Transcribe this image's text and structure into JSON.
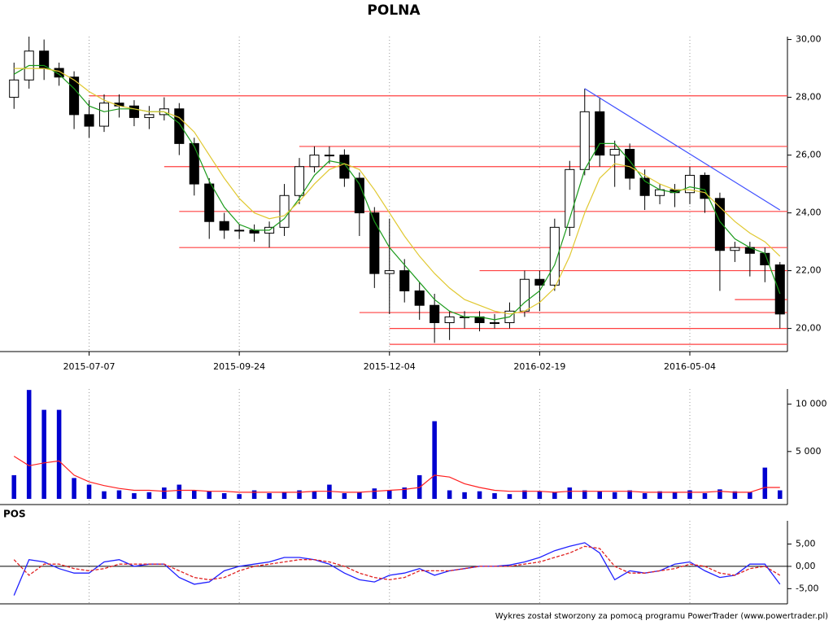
{
  "chart_data": [
    {
      "type": "candlestick",
      "title": "POLNA",
      "categories": [
        null,
        null,
        null,
        null,
        null,
        "2015-07-07",
        null,
        null,
        null,
        null,
        null,
        null,
        null,
        null,
        null,
        "2015-09-24",
        null,
        null,
        null,
        null,
        null,
        null,
        null,
        null,
        null,
        "2015-12-04",
        null,
        null,
        null,
        null,
        null,
        null,
        null,
        null,
        null,
        "2016-02-19",
        null,
        null,
        null,
        null,
        null,
        null,
        null,
        null,
        null,
        "2016-05-04",
        null,
        null,
        null,
        null,
        null,
        null
      ],
      "open": [
        28.0,
        28.6,
        29.6,
        29.0,
        28.7,
        27.4,
        27.0,
        27.8,
        27.7,
        27.3,
        27.4,
        27.6,
        26.4,
        25.0,
        23.7,
        23.4,
        23.4,
        23.3,
        23.5,
        24.6,
        25.6,
        26.0,
        26.0,
        25.2,
        24.0,
        21.9,
        22.0,
        21.3,
        20.8,
        20.2,
        20.4,
        20.4,
        20.2,
        20.2,
        20.6,
        21.7,
        21.5,
        23.5,
        25.5,
        27.5,
        26.0,
        26.2,
        25.2,
        24.6,
        24.8,
        24.7,
        25.3,
        24.5,
        22.7,
        22.8,
        22.6,
        22.2
      ],
      "high": [
        29.2,
        30.1,
        30.0,
        29.2,
        28.9,
        27.9,
        28.1,
        28.1,
        27.9,
        27.7,
        28.0,
        27.8,
        26.6,
        25.2,
        24.0,
        23.6,
        23.6,
        23.7,
        25.0,
        25.9,
        26.3,
        26.3,
        26.2,
        25.4,
        24.2,
        23.8,
        22.4,
        21.6,
        21.2,
        20.6,
        20.6,
        20.6,
        20.5,
        20.9,
        22.0,
        22.0,
        23.8,
        25.8,
        28.3,
        28.0,
        26.5,
        26.4,
        25.5,
        25.0,
        25.0,
        25.6,
        25.4,
        24.7,
        23.0,
        23.0,
        22.8,
        22.3
      ],
      "low": [
        27.6,
        28.3,
        28.6,
        28.4,
        26.9,
        26.6,
        26.8,
        27.3,
        27.0,
        26.9,
        27.2,
        26.0,
        24.6,
        23.1,
        23.1,
        23.1,
        23.0,
        22.8,
        23.2,
        24.3,
        25.4,
        25.7,
        24.9,
        23.2,
        21.4,
        20.5,
        20.9,
        20.3,
        19.5,
        19.6,
        20.0,
        19.9,
        20.0,
        20.0,
        20.4,
        20.6,
        21.3,
        23.2,
        25.3,
        25.6,
        24.9,
        24.8,
        24.1,
        24.3,
        24.2,
        24.3,
        24.0,
        21.3,
        22.3,
        21.8,
        21.6,
        20.0
      ],
      "close": [
        28.6,
        29.6,
        29.0,
        28.7,
        27.4,
        27.0,
        27.8,
        27.7,
        27.3,
        27.4,
        27.6,
        26.4,
        25.0,
        23.7,
        23.4,
        23.4,
        23.3,
        23.5,
        24.6,
        25.6,
        26.0,
        26.0,
        25.2,
        24.0,
        21.9,
        22.0,
        21.3,
        20.8,
        20.2,
        20.4,
        20.4,
        20.2,
        20.2,
        20.6,
        21.7,
        21.5,
        23.5,
        25.5,
        27.5,
        26.0,
        26.2,
        25.2,
        24.6,
        24.8,
        24.7,
        25.3,
        24.5,
        22.7,
        22.8,
        22.6,
        22.2,
        20.5
      ],
      "series": [
        {
          "color": "#1a9a1a",
          "values": [
            28.8,
            29.1,
            29.1,
            28.8,
            28.3,
            27.7,
            27.5,
            27.6,
            27.6,
            27.5,
            27.5,
            27.1,
            26.3,
            25.1,
            24.2,
            23.6,
            23.4,
            23.4,
            23.8,
            24.5,
            25.3,
            25.8,
            25.7,
            25.0,
            23.7,
            22.8,
            22.2,
            21.6,
            21.0,
            20.6,
            20.4,
            20.4,
            20.3,
            20.4,
            20.9,
            21.3,
            22.2,
            23.8,
            25.5,
            26.4,
            26.4,
            25.8,
            25.1,
            24.8,
            24.7,
            24.9,
            24.8,
            23.7,
            23.1,
            22.8,
            22.6,
            21.2
          ]
        },
        {
          "color": "#e0c830",
          "values": [
            29.0,
            29.0,
            29.0,
            28.9,
            28.6,
            28.2,
            27.9,
            27.7,
            27.6,
            27.5,
            27.5,
            27.3,
            26.8,
            26.0,
            25.2,
            24.5,
            24.0,
            23.8,
            23.9,
            24.4,
            25.0,
            25.5,
            25.7,
            25.5,
            24.8,
            24.0,
            23.2,
            22.5,
            21.9,
            21.4,
            21.0,
            20.8,
            20.6,
            20.5,
            20.6,
            20.9,
            21.4,
            22.5,
            24.0,
            25.2,
            25.7,
            25.6,
            25.3,
            25.0,
            24.8,
            24.8,
            24.7,
            24.2,
            23.7,
            23.3,
            23.0,
            22.5
          ]
        }
      ],
      "levels": [
        {
          "value": 28.05,
          "from": 5
        },
        {
          "value": 26.3,
          "from": 19
        },
        {
          "value": 25.6,
          "from": 10
        },
        {
          "value": 24.05,
          "from": 11
        },
        {
          "value": 22.8,
          "from": 11
        },
        {
          "value": 22.0,
          "from": 31
        },
        {
          "value": 21.0,
          "from": 48
        },
        {
          "value": 20.55,
          "from": 23
        },
        {
          "value": 20.0,
          "from": 25
        },
        {
          "value": 19.45,
          "from": 25
        }
      ],
      "level_color": "#ff4040",
      "trendline": {
        "x": [
          38,
          51
        ],
        "y": [
          28.3,
          24.1
        ],
        "color": "#4050ff"
      },
      "ylim": [
        19.2,
        30.1
      ],
      "yticks": [
        {
          "value": 20,
          "label": "20,00"
        },
        {
          "value": 22,
          "label": "22,00"
        },
        {
          "value": 24,
          "label": "24,00"
        },
        {
          "value": 26,
          "label": "26,00"
        },
        {
          "value": 28,
          "label": "28,00"
        },
        {
          "value": 30,
          "label": "30,00"
        }
      ],
      "grid": true
    },
    {
      "type": "bar",
      "color": "#0000d0",
      "values": [
        2500,
        11500,
        9400,
        9400,
        2200,
        1500,
        800,
        900,
        600,
        700,
        1200,
        1500,
        900,
        800,
        600,
        500,
        900,
        600,
        700,
        900,
        800,
        1500,
        600,
        700,
        1100,
        900,
        1200,
        2500,
        8200,
        900,
        700,
        800,
        600,
        500,
        900,
        800,
        700,
        1200,
        900,
        800,
        700,
        900,
        600,
        800,
        700,
        900,
        600,
        1000,
        800,
        700,
        3300,
        900
      ],
      "series": [
        {
          "color": "#ff2020",
          "values": [
            4500,
            3500,
            3800,
            4000,
            2500,
            1800,
            1400,
            1100,
            900,
            900,
            800,
            900,
            900,
            800,
            800,
            700,
            700,
            700,
            700,
            700,
            800,
            800,
            700,
            700,
            800,
            900,
            1000,
            1200,
            2500,
            2300,
            1600,
            1200,
            900,
            800,
            800,
            800,
            700,
            800,
            800,
            800,
            800,
            800,
            700,
            700,
            700,
            700,
            700,
            800,
            700,
            700,
            1200,
            1200
          ]
        }
      ],
      "ylim": [
        0,
        11600
      ],
      "yticks": [
        {
          "value": 5000,
          "label": "5 000"
        },
        {
          "value": 10000,
          "label": "10 000"
        }
      ],
      "grid": true
    },
    {
      "type": "line",
      "title": "POS",
      "series": [
        {
          "color": "#2020ff",
          "style": "solid",
          "values": [
            -6.5,
            1.5,
            1.0,
            -0.5,
            -1.5,
            -1.5,
            1.0,
            1.5,
            0.0,
            0.5,
            0.5,
            -2.5,
            -4.0,
            -3.5,
            -1.0,
            0.0,
            0.5,
            1.0,
            2.0,
            2.0,
            1.5,
            0.5,
            -1.5,
            -3.0,
            -3.5,
            -2.0,
            -1.5,
            -0.5,
            -2.0,
            -1.0,
            -0.5,
            0.0,
            0.0,
            0.3,
            1.0,
            2.0,
            3.5,
            4.5,
            5.3,
            3.0,
            -3.0,
            -1.0,
            -1.5,
            -1.0,
            0.5,
            1.0,
            -1.0,
            -2.5,
            -2.0,
            0.5,
            0.5,
            -4.0
          ]
        },
        {
          "color": "#e02020",
          "style": "dashed",
          "values": [
            1.5,
            -2.0,
            0.5,
            0.5,
            -0.5,
            -1.0,
            -0.5,
            0.5,
            0.5,
            0.5,
            0.5,
            -1.0,
            -2.5,
            -3.0,
            -2.5,
            -1.0,
            0.0,
            0.5,
            1.0,
            1.5,
            1.5,
            1.0,
            0.0,
            -1.5,
            -2.5,
            -3.0,
            -2.5,
            -1.0,
            -1.0,
            -1.0,
            -0.5,
            0.0,
            0.0,
            0.0,
            0.5,
            1.0,
            2.0,
            3.0,
            4.5,
            4.0,
            0.0,
            -1.5,
            -1.5,
            -1.0,
            -0.5,
            0.5,
            0.0,
            -1.5,
            -2.0,
            -0.5,
            0.0,
            -2.0
          ]
        }
      ],
      "ylim": [
        -8.4,
        10.2
      ],
      "yticks": [
        {
          "value": -5,
          "label": "-5,00"
        },
        {
          "value": 0,
          "label": "0,00"
        },
        {
          "value": 5,
          "label": "5,00"
        }
      ],
      "grid": true
    }
  ],
  "footer": "Wykres został stworzony za pomocą programu PowerTrader (www.powertrader.pl)"
}
